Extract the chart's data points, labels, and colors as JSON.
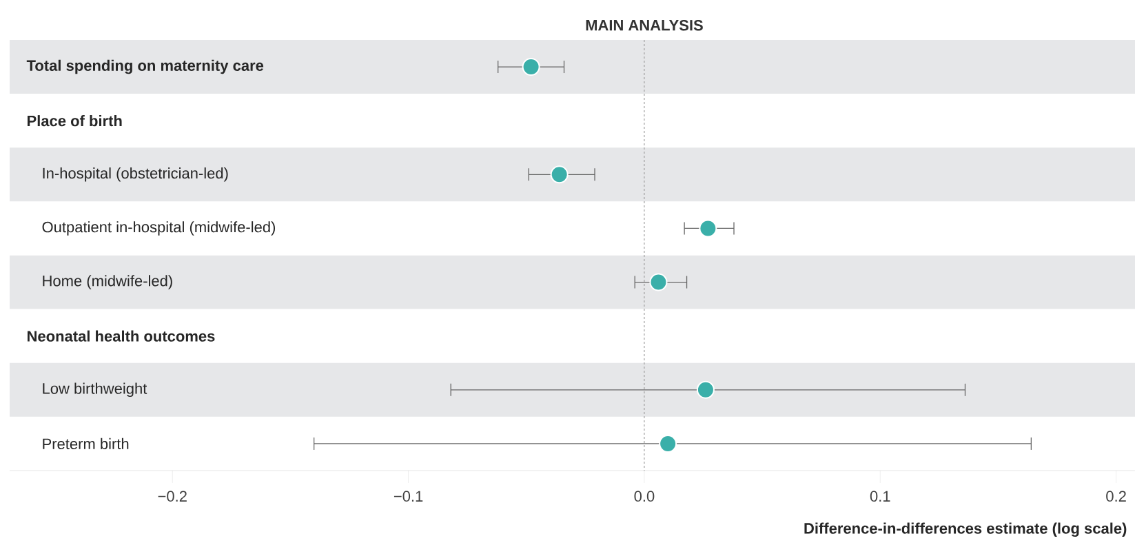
{
  "chart_data": {
    "type": "scatter",
    "orientation": "horizontal",
    "title": "MAIN ANALYSIS",
    "xlabel": "Difference-in-differences estimate (log scale)",
    "categories": [
      "**Total spending on maternity care**",
      "**Place of birth**",
      "In-hospital (obstetrician-led)",
      "Outpatient in-hospital (midwife-led)",
      "Home (midwife-led)",
      "**Neonatal health outcomes**",
      "Low birthweight",
      "Preterm birth"
    ],
    "series": [
      {
        "color": "#3aafa9",
        "values": [
          -0.048,
          null,
          -0.036,
          0.027,
          0.006,
          null,
          0.026,
          0.01
        ],
        "errors": [
          [
            -0.062,
            -0.034
          ],
          null,
          [
            -0.049,
            -0.021
          ],
          [
            0.017,
            0.038
          ],
          [
            -0.004,
            0.018
          ],
          null,
          [
            -0.082,
            0.136
          ],
          [
            -0.14,
            0.164
          ]
        ]
      }
    ],
    "xlim": [
      -0.269,
      0.208
    ],
    "xticks": [
      {
        "value": -0.2,
        "label": "−0.2"
      },
      {
        "value": -0.1,
        "label": "−0.1"
      },
      {
        "value": 0,
        "label": "0.0"
      },
      0.1,
      0.2
    ],
    "ref_lines": [
      {
        "axis": "x",
        "value": 0,
        "color": "#a0a0a0",
        "line_style": "dashed"
      }
    ],
    "grid": false
  }
}
